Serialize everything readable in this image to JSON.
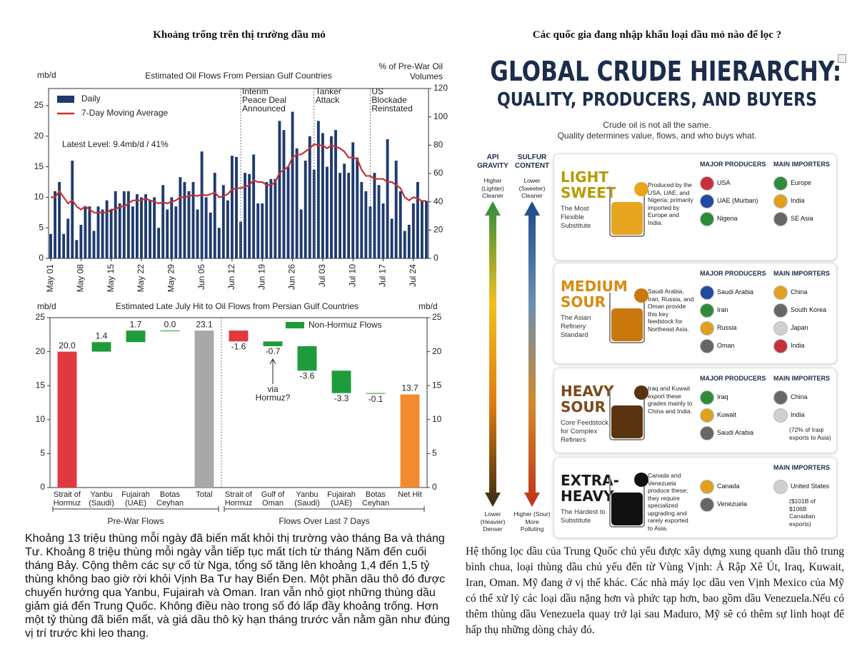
{
  "left_title": "Khoảng trống trên thị trường dầu mỏ",
  "right_title": "Các quốc gia đang nhập khẩu loại dầu mỏ nào để lọc ?",
  "chart_data": [
    {
      "type": "bar_line",
      "title": "Estimated Oil Flows From Persian Gulf Countries",
      "ylabel": "mb/d",
      "y2label": "% of Pre-War Oil Volumes",
      "categories": [
        "May 01",
        null,
        null,
        null,
        null,
        null,
        null,
        "May 08",
        null,
        null,
        null,
        null,
        null,
        null,
        "May 15",
        null,
        null,
        null,
        null,
        null,
        null,
        "May 22",
        null,
        null,
        null,
        null,
        null,
        null,
        "May 29",
        null,
        null,
        null,
        null,
        null,
        null,
        "Jun 05",
        null,
        null,
        null,
        null,
        null,
        null,
        "Jun 12",
        null,
        null,
        null,
        null,
        null,
        null,
        "Jun 19",
        null,
        null,
        null,
        null,
        null,
        null,
        "Jun 26",
        null,
        null,
        null,
        null,
        null,
        null,
        "Jul 03",
        null,
        null,
        null,
        null,
        null,
        null,
        "Jul 10",
        null,
        null,
        null,
        null,
        null,
        null,
        "Jul 17",
        null,
        null,
        null,
        null,
        null,
        null,
        "Jul 24",
        null,
        null,
        null
      ],
      "series": [
        {
          "name": "Daily",
          "kind": "bar",
          "color": "#1f3a6e",
          "values": [
            4,
            11,
            12.5,
            4,
            6.5,
            16,
            3,
            5.5,
            8.5,
            8.5,
            4.5,
            8.5,
            8,
            9.5,
            8,
            11,
            9,
            11,
            11,
            8.5,
            10.5,
            10,
            10.5,
            9.5,
            10,
            5,
            12,
            8,
            10,
            8.5,
            13.3,
            12.5,
            11,
            12.5,
            8,
            17.5,
            10,
            7.5,
            14,
            5,
            12,
            9.5,
            16.8,
            16.6,
            6,
            14,
            13.8,
            17,
            9,
            9,
            12.5,
            13,
            13,
            22.5,
            21,
            15,
            24,
            18,
            8,
            16,
            20,
            14.5,
            22.5,
            20.5,
            15,
            20,
            21,
            14,
            15.5,
            14,
            19,
            16.5,
            12.5,
            11,
            8.5,
            14,
            12,
            9,
            19.5,
            6.5,
            16,
            11,
            4.5,
            5.5,
            9,
            12.5,
            9.4,
            9.4
          ]
        },
        {
          "name": "7-Day Moving Average",
          "kind": "line",
          "color": "#c8312f",
          "values": [
            10,
            10,
            11,
            10,
            9,
            9.5,
            8.5,
            8,
            8.5,
            8,
            7.5,
            7.5,
            7.5,
            7.5,
            8,
            8,
            8.5,
            8.5,
            9,
            9.5,
            9.5,
            9.5,
            9.8,
            9.5,
            9.3,
            9,
            9.2,
            9,
            9.3,
            9.5,
            10,
            10,
            10.2,
            10.4,
            10.2,
            10.5,
            10.3,
            10.5,
            10.8,
            10,
            10.2,
            10.5,
            11.3,
            11.5,
            11.5,
            11.7,
            12,
            12.8,
            12.5,
            12.5,
            12,
            12,
            12.5,
            14,
            14.5,
            15,
            16.5,
            17,
            17,
            17.5,
            18,
            18.7,
            18.5,
            18.5,
            18,
            18.5,
            18.3,
            18,
            17.5,
            16.5,
            16.5,
            16.3,
            14.5,
            13.5,
            13.5,
            13,
            13,
            13,
            12.5,
            12.5,
            12,
            11.5,
            10,
            9.5,
            10,
            9.8,
            9.4,
            9.4
          ]
        }
      ],
      "ylim": [
        0,
        27.8
      ],
      "yticks": [
        0,
        5,
        10,
        15,
        20,
        25
      ],
      "y2lim": [
        0,
        120
      ],
      "y2ticks": [
        0,
        20,
        40,
        60,
        80,
        100,
        120
      ],
      "grid": false,
      "legend": "upper left",
      "note": "Latest Level: 9.4mb/d / 41%",
      "annotations": [
        {
          "lines": [
            "Interim",
            "Peace Deal",
            "Announced"
          ],
          "category": 44
        },
        {
          "lines": [
            "Tanker",
            "Attack"
          ],
          "category": 61
        },
        {
          "lines": [
            "US",
            "Blockade",
            "Reinstated"
          ],
          "category": 74
        }
      ]
    },
    {
      "type": "waterfall",
      "title": "Estimated Late July Hit to Oil Flows from Persian Gulf Countries",
      "ylabel": "mb/d",
      "y2label": "mb/d",
      "categories": [
        "Strait of Hormuz",
        "Yanbu (Saudi)",
        "Fujairah (UAE)",
        "Botas Ceyhan",
        "Total",
        "Strait of Hormuz",
        "Gulf of Oman",
        "Yanbu (Saudi)",
        "Fujairah (UAE)",
        "Botas Ceyhan",
        "Net Hit"
      ],
      "values": [
        20,
        1.4,
        1.7,
        0,
        23.1,
        -1.6,
        -0.7,
        -3.6,
        -3.3,
        -0.1,
        13.7
      ],
      "value_labels": [
        "20.0",
        "1.4",
        "1.7",
        "0.0",
        "23.1",
        "-1.6",
        "-0.7",
        "-3.6",
        "-3.3",
        "-0.1",
        "13.7"
      ],
      "measure": [
        "absolute",
        "relative",
        "relative",
        "relative",
        "absolute",
        "relative",
        "relative",
        "relative",
        "relative",
        "relative",
        "absolute"
      ],
      "colors": [
        "#e0393e",
        "#1e9b3a",
        "#1e9b3a",
        "#1e9b3a",
        "#a8a8a8",
        "#e0393e",
        "#1e9b3a",
        "#1e9b3a",
        "#1e9b3a",
        "#1e9b3a",
        "#f28a2e"
      ],
      "legend_entry": {
        "name": "Non-Hormuz Flows",
        "color": "#1e9b3a"
      },
      "ylim": [
        0,
        25
      ],
      "yticks": [
        0,
        5,
        10,
        15,
        20,
        25
      ],
      "y2lim": [
        0,
        25
      ],
      "y2ticks": [
        0,
        5,
        10,
        15,
        20,
        25
      ],
      "groups": [
        {
          "name": "Pre-War Flows",
          "span": [
            0,
            4
          ]
        },
        {
          "name": "Flows Over Last 7 Days",
          "span": [
            5,
            10
          ]
        }
      ],
      "annotation": {
        "lines": [
          "via",
          "Hormuz?"
        ],
        "category": 6
      }
    }
  ],
  "infographic": {
    "title": [
      "GLOBAL CRUDE HIERARCHY:",
      "QUALITY, PRODUCERS, AND BUYERS"
    ],
    "subtitle": [
      "Crude oil is not all the same.",
      "Quality determines value, flows, and who buys what."
    ],
    "axes": [
      {
        "label": "API GRAVITY",
        "top": "Higher (Lighter) Cleaner",
        "bottom": "Lower (Heavier) Denser"
      },
      {
        "label": "SULFUR CONTENT",
        "top": "Lower (Sweeter) Cleaner",
        "bottom": "Higher (Sour) More Polluting"
      }
    ],
    "tiers": [
      {
        "name": "LIGHT SWEET",
        "desc": "The Most Flexible Substitute",
        "note": "Produced by the USA, UAE, and Nigeria; primarily imported by Europe and India.",
        "producers_header": "MAJOR PRODUCERS",
        "producers": [
          "USA",
          "UAE (Murban)",
          "Nigeria"
        ],
        "importers_header": "MAIN IMPORTERS",
        "importers": [
          "Europe",
          "India",
          "SE Asia"
        ]
      },
      {
        "name": "MEDIUM SOUR",
        "desc": "The Asian Refinery Standard",
        "note": "Saudi Arabia, Iran, Russia, and Oman provide this key feedstock for Northeast Asia.",
        "producers_header": "MAJOR PRODUCERS",
        "producers": [
          "Saudi Arabia",
          "Iran",
          "Russia",
          "Oman"
        ],
        "importers_header": "MAIN IMPORTERS",
        "importers": [
          "China",
          "South Korea",
          "Japan",
          "India"
        ]
      },
      {
        "name": "HEAVY SOUR",
        "desc": "Core Feedstock for Complex Refiners",
        "note": "Iraq and Kuwait export these grades mainly to China and India.",
        "producers_header": "MAJOR PRODUCERS",
        "producers": [
          "Iraq",
          "Kuwait",
          "Saudi Arabia"
        ],
        "importers_header": "MAIN IMPORTERS",
        "importers": [
          "China",
          "India"
        ],
        "importer_note": "(72% of Iraqi exports to Asia)"
      },
      {
        "name": "EXTRA-HEAVY",
        "desc": "The Hardest to Substitute",
        "note": "Canada and Venezuela produce these; they require specialized upgrading and rarely exported to Asia.",
        "producers": [
          "Canada",
          "Venezuela"
        ],
        "importers_header": "MAIN IMPORTERS",
        "importers": [
          "United States"
        ],
        "importer_note": "($101B of $106B Canadian exports)"
      }
    ]
  },
  "left_text": "Khoảng 13 triệu thùng mỗi ngày đã biến mất khỏi thị trường vào tháng Ba và tháng Tư. Khoảng 8 triệu thùng mỗi ngày vẫn tiếp tục mất tích từ tháng Năm đến cuối tháng Bảy. Cộng thêm các sự cố từ Nga, tổng số tăng lên khoảng 1,4 đến 1,5 tỷ thùng không bao giờ rời khỏi Vịnh Ba Tư hay Biển Đen. Một phần dầu thô đó được chuyển hướng qua Yanbu, Fujairah và Oman. Iran vẫn nhỏ giọt những thùng dầu giảm giá đến Trung Quốc. Không điều nào trong số đó lấp đầy khoảng trống. Hơn một tỷ thùng đã biến mất, và giá dầu thô kỳ hạn tháng trước vẫn nằm gần như đúng vị trí trước khi leo thang.",
  "right_text": "Hệ thống lọc dầu của Trung Quốc chủ yếu được xây dựng xung quanh dầu thô trung bình chua, loại thùng dầu chủ yếu đến từ Vùng Vịnh: Ả Rập Xê Út, Iraq, Kuwait, Iran, Oman. Mỹ đang ở vị thế khác. Các nhà máy lọc dầu ven Vịnh Mexico của Mỹ có thể xử lý các loại dầu nặng hơn và phức tạp hơn, bao gồm dầu Venezuela.Nếu có thêm thùng dầu Venezuela quay trở lại sau Maduro, Mỹ sẽ có thêm sự linh hoạt để hấp thụ những dòng chảy đó."
}
